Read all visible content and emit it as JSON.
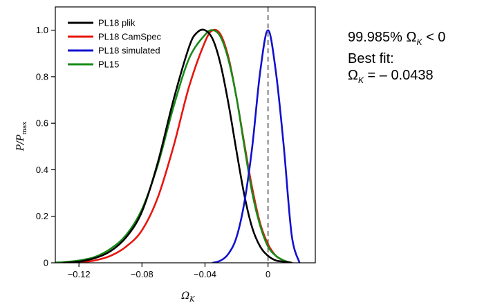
{
  "chart_data": {
    "type": "line",
    "xlabel_symbol": "Ω",
    "xlabel_sub": "K",
    "ylabel_main": "P",
    "ylabel_den": "P",
    "ylabel_sub": "max",
    "xlim": [
      -0.135,
      0.03
    ],
    "ylim": [
      0,
      1.1
    ],
    "x_ticks": [
      -0.12,
      -0.08,
      -0.04,
      0
    ],
    "x_tick_labels": [
      "−0.12",
      "−0.08",
      "−0.04",
      "0"
    ],
    "y_ticks": [
      0,
      0.2,
      0.4,
      0.6,
      0.8,
      1.0
    ],
    "y_tick_labels": [
      "0",
      "0.2",
      "0.4",
      "0.6",
      "0.8",
      "1.0"
    ],
    "reference_line_x": 0,
    "reference_line_color": "#808080",
    "reference_line_style": "dashed",
    "legend_position": "top-left",
    "series": [
      {
        "name": "PL18 plik",
        "color": "#000000",
        "x": [
          -0.13,
          -0.12,
          -0.11,
          -0.1,
          -0.09,
          -0.08,
          -0.07,
          -0.06,
          -0.05,
          -0.045,
          -0.04,
          -0.035,
          -0.03,
          -0.025,
          -0.02,
          -0.015,
          -0.01,
          -0.005,
          0,
          0.005,
          0.01,
          0.015
        ],
        "y": [
          0.0,
          0.005,
          0.02,
          0.05,
          0.11,
          0.22,
          0.43,
          0.7,
          0.93,
          0.99,
          1.0,
          0.96,
          0.85,
          0.68,
          0.48,
          0.29,
          0.15,
          0.07,
          0.03,
          0.01,
          0.005,
          0.0
        ]
      },
      {
        "name": "PL18 CamSpec",
        "color": "#e8140c",
        "x": [
          -0.12,
          -0.11,
          -0.1,
          -0.09,
          -0.08,
          -0.07,
          -0.06,
          -0.05,
          -0.04,
          -0.035,
          -0.03,
          -0.025,
          -0.02,
          -0.015,
          -0.01,
          -0.005,
          0,
          0.005,
          0.01,
          0.015
        ],
        "y": [
          0.0,
          0.01,
          0.03,
          0.07,
          0.14,
          0.28,
          0.5,
          0.76,
          0.95,
          1.0,
          0.98,
          0.88,
          0.71,
          0.51,
          0.32,
          0.17,
          0.08,
          0.03,
          0.01,
          0.0
        ]
      },
      {
        "name": "PL18 simulated",
        "color": "#1010d0",
        "x": [
          -0.035,
          -0.03,
          -0.025,
          -0.02,
          -0.015,
          -0.01,
          -0.005,
          0,
          0.005,
          0.01,
          0.015,
          0.02
        ],
        "y": [
          0.0,
          0.01,
          0.04,
          0.11,
          0.26,
          0.5,
          0.82,
          1.0,
          0.82,
          0.5,
          0.12,
          0.0
        ]
      },
      {
        "name": "PL15",
        "color": "#178a17",
        "x": [
          -0.14,
          -0.13,
          -0.12,
          -0.11,
          -0.1,
          -0.09,
          -0.08,
          -0.07,
          -0.06,
          -0.05,
          -0.04,
          -0.035,
          -0.03,
          -0.025,
          -0.02,
          -0.015,
          -0.01,
          -0.005,
          0,
          0.005,
          0.01,
          0.015
        ],
        "y": [
          0.0,
          0.003,
          0.01,
          0.025,
          0.06,
          0.12,
          0.23,
          0.42,
          0.67,
          0.88,
          0.98,
          1.0,
          0.97,
          0.87,
          0.71,
          0.5,
          0.3,
          0.16,
          0.07,
          0.03,
          0.01,
          0.0
        ]
      }
    ]
  },
  "annotation": {
    "prob_value": "99.985%",
    "prob_symbol": "Ω",
    "prob_sub": "K",
    "prob_relation": "< 0",
    "best_fit_label": "Best fit:",
    "best_fit_symbol": "Ω",
    "best_fit_sub": "K",
    "best_fit_value": "= – 0.0438"
  }
}
